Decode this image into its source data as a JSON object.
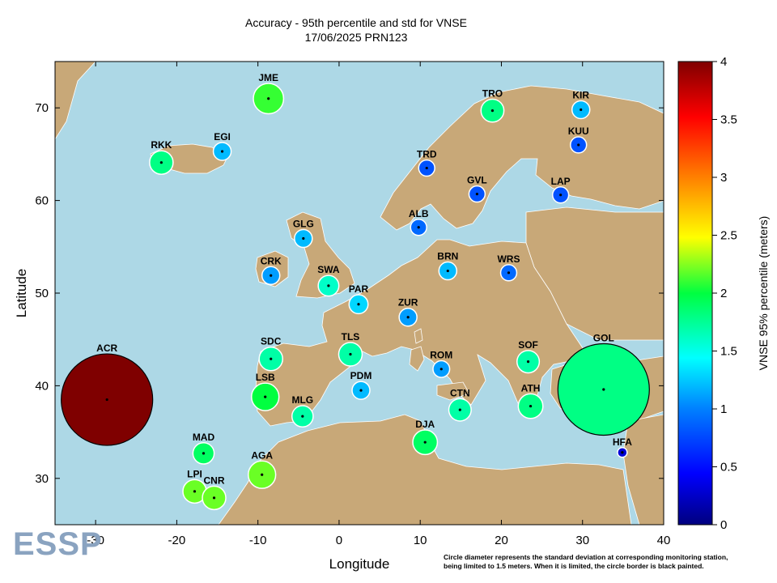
{
  "title_line1": "Accuracy - 95th percentile and std for VNSE",
  "title_line2": "17/06/2025 PRN123",
  "axes": {
    "xlabel": "Longitude",
    "ylabel": "Latitude",
    "x_ticks": [
      "-30",
      "-20",
      "-10",
      "0",
      "10",
      "20",
      "30",
      "40"
    ],
    "y_ticks": [
      "30",
      "40",
      "50",
      "60",
      "70"
    ]
  },
  "colorbar": {
    "label": "VNSE 95% percentile (meters)",
    "ticks": [
      "0",
      "0.5",
      "1",
      "1.5",
      "2",
      "2.5",
      "3",
      "3.5",
      "4"
    ]
  },
  "footnote": {
    "line1": "Circle diameter represents the standard deviation at corresponding monitoring station,",
    "line2": "being limited to 1.5 meters. When it is limited, the circle border is black painted."
  },
  "logo_text": "ESSP",
  "colors": {
    "sea": "#add8e6",
    "land": "#c8a878",
    "border": "#ffffff"
  },
  "chart_data": {
    "type": "scatter",
    "xlim": [
      -35,
      40
    ],
    "ylim": [
      25,
      75
    ],
    "color_range": [
      0,
      4
    ],
    "stations": [
      {
        "name": "JME",
        "lon": -8.7,
        "lat": 71.0,
        "value": 2.1,
        "std": 0.42
      },
      {
        "name": "TRO",
        "lon": 18.9,
        "lat": 69.7,
        "value": 1.8,
        "std": 0.29
      },
      {
        "name": "KIR",
        "lon": 29.8,
        "lat": 69.8,
        "value": 1.2,
        "std": 0.2
      },
      {
        "name": "EGI",
        "lon": -14.4,
        "lat": 65.3,
        "value": 1.2,
        "std": 0.2
      },
      {
        "name": "RKK",
        "lon": -21.9,
        "lat": 64.1,
        "value": 1.8,
        "std": 0.3
      },
      {
        "name": "KUU",
        "lon": 29.5,
        "lat": 66.0,
        "value": 0.8,
        "std": 0.17
      },
      {
        "name": "TRD",
        "lon": 10.8,
        "lat": 63.5,
        "value": 0.8,
        "std": 0.17
      },
      {
        "name": "GVL",
        "lon": 17.0,
        "lat": 60.7,
        "value": 0.8,
        "std": 0.17
      },
      {
        "name": "LAP",
        "lon": 27.3,
        "lat": 60.6,
        "value": 0.8,
        "std": 0.17
      },
      {
        "name": "ALB",
        "lon": 9.8,
        "lat": 57.1,
        "value": 0.9,
        "std": 0.17
      },
      {
        "name": "GLG",
        "lon": -4.4,
        "lat": 55.9,
        "value": 1.2,
        "std": 0.2
      },
      {
        "name": "CRK",
        "lon": -8.4,
        "lat": 51.9,
        "value": 1.1,
        "std": 0.2
      },
      {
        "name": "BRN",
        "lon": 13.4,
        "lat": 52.4,
        "value": 1.2,
        "std": 0.2
      },
      {
        "name": "WRS",
        "lon": 20.9,
        "lat": 52.2,
        "value": 0.9,
        "std": 0.17
      },
      {
        "name": "SWA",
        "lon": -1.3,
        "lat": 50.8,
        "value": 1.6,
        "std": 0.25
      },
      {
        "name": "PAR",
        "lon": 2.4,
        "lat": 48.8,
        "value": 1.3,
        "std": 0.22
      },
      {
        "name": "ZUR",
        "lon": 8.5,
        "lat": 47.4,
        "value": 1.1,
        "std": 0.2
      },
      {
        "name": "TLS",
        "lon": 1.4,
        "lat": 43.4,
        "value": 1.7,
        "std": 0.3
      },
      {
        "name": "SDC",
        "lon": -8.4,
        "lat": 42.9,
        "value": 1.7,
        "std": 0.3
      },
      {
        "name": "ROM",
        "lon": 12.6,
        "lat": 41.8,
        "value": 1.1,
        "std": 0.18
      },
      {
        "name": "SOF",
        "lon": 23.3,
        "lat": 42.6,
        "value": 1.7,
        "std": 0.28
      },
      {
        "name": "GOL",
        "lon": 32.6,
        "lat": 39.6,
        "value": 1.8,
        "std": 1.5
      },
      {
        "name": "ACR",
        "lon": -28.6,
        "lat": 38.5,
        "value": 4.0,
        "std": 1.5
      },
      {
        "name": "PDM",
        "lon": 2.7,
        "lat": 39.5,
        "value": 1.2,
        "std": 0.2
      },
      {
        "name": "LSB",
        "lon": -9.1,
        "lat": 38.8,
        "value": 2.0,
        "std": 0.37
      },
      {
        "name": "MLG",
        "lon": -4.5,
        "lat": 36.7,
        "value": 1.7,
        "std": 0.26
      },
      {
        "name": "CTN",
        "lon": 14.9,
        "lat": 37.4,
        "value": 1.7,
        "std": 0.28
      },
      {
        "name": "ATH",
        "lon": 23.6,
        "lat": 37.8,
        "value": 1.8,
        "std": 0.32
      },
      {
        "name": "DJA",
        "lon": 10.6,
        "lat": 33.9,
        "value": 1.9,
        "std": 0.32
      },
      {
        "name": "HFA",
        "lon": 34.9,
        "lat": 32.8,
        "value": 0.3,
        "std": 0.02
      },
      {
        "name": "MAD",
        "lon": -16.7,
        "lat": 32.7,
        "value": 1.9,
        "std": 0.26
      },
      {
        "name": "AGA",
        "lon": -9.5,
        "lat": 30.4,
        "value": 2.2,
        "std": 0.37
      },
      {
        "name": "LPI",
        "lon": -17.8,
        "lat": 28.6,
        "value": 2.2,
        "std": 0.3
      },
      {
        "name": "CNR",
        "lon": -15.4,
        "lat": 27.9,
        "value": 2.2,
        "std": 0.3
      }
    ]
  }
}
